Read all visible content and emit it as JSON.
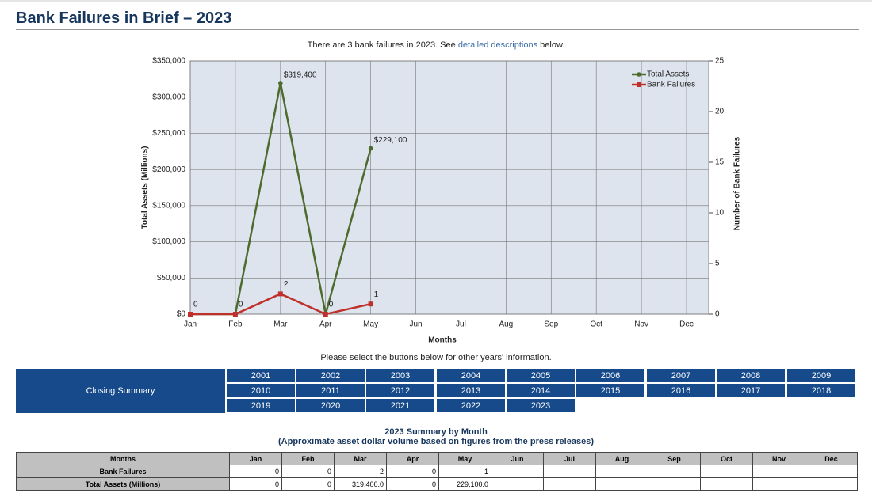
{
  "header": {
    "title": "Bank Failures in Brief – 2023"
  },
  "intro": {
    "before": "There are 3 bank failures in 2023. See ",
    "link": "detailed descriptions",
    "after": " below."
  },
  "chart_data": {
    "type": "line",
    "categories": [
      "Jan",
      "Feb",
      "Mar",
      "Apr",
      "May",
      "Jun",
      "Jul",
      "Aug",
      "Sep",
      "Oct",
      "Nov",
      "Dec"
    ],
    "x_label": "Months",
    "y_label": "Total Assets (Millions)",
    "y2_label": "Number of Bank Failures",
    "series": [
      {
        "name": "Total Assets",
        "color": "#4e6b2e",
        "values": [
          0,
          0,
          319400,
          0,
          229100,
          null,
          null,
          null,
          null,
          null,
          null,
          null
        ],
        "value_labels": [
          null,
          null,
          "$319,400",
          null,
          "$229,100",
          null,
          null,
          null,
          null,
          null,
          null,
          null
        ]
      },
      {
        "name": "Bank Failures",
        "color": "#c0302a",
        "axis": "y2",
        "values": [
          0,
          0,
          2,
          0,
          1,
          null,
          null,
          null,
          null,
          null,
          null,
          null
        ]
      }
    ],
    "ylim": [
      0,
      350000
    ],
    "yticks": [
      {
        "value": 0,
        "label": "$0"
      },
      {
        "value": 50000,
        "label": "$50,000"
      },
      {
        "value": 100000,
        "label": "$100,000"
      },
      {
        "value": 150000,
        "label": "$150,000"
      },
      {
        "value": 200000,
        "label": "$200,000"
      },
      {
        "value": 250000,
        "label": "$250,000"
      },
      {
        "value": 300000,
        "label": "$300,000"
      },
      {
        "value": 350000,
        "label": "$350,000"
      }
    ],
    "y2lim": [
      0,
      25
    ],
    "y2ticks": [
      0,
      5,
      10,
      15,
      20,
      25
    ],
    "grid": true,
    "legend": "top-right"
  },
  "select_note": "Please select the buttons below for other years' information.",
  "buttons": {
    "label": "Closing Summary",
    "years": [
      "2001",
      "2002",
      "2003",
      "2004",
      "2005",
      "2006",
      "2007",
      "2008",
      "2009",
      "2010",
      "2011",
      "2012",
      "2013",
      "2014",
      "2015",
      "2016",
      "2017",
      "2018",
      "2019",
      "2020",
      "2021",
      "2022",
      "2023"
    ]
  },
  "table": {
    "title": "2023 Summary by Month",
    "subtitle": "(Approximate asset dollar volume based on figures from the press releases)",
    "corner": "Months",
    "rows": [
      {
        "label": "Bank Failures",
        "cells": [
          "0",
          "0",
          "2",
          "0",
          "1",
          null,
          null,
          null,
          null,
          null,
          null,
          null
        ]
      },
      {
        "label": "Total Assets (Millions)",
        "cells": [
          "0",
          "0",
          "319,400.0",
          "0",
          "229,100.0",
          null,
          null,
          null,
          null,
          null,
          null,
          null
        ]
      }
    ]
  }
}
